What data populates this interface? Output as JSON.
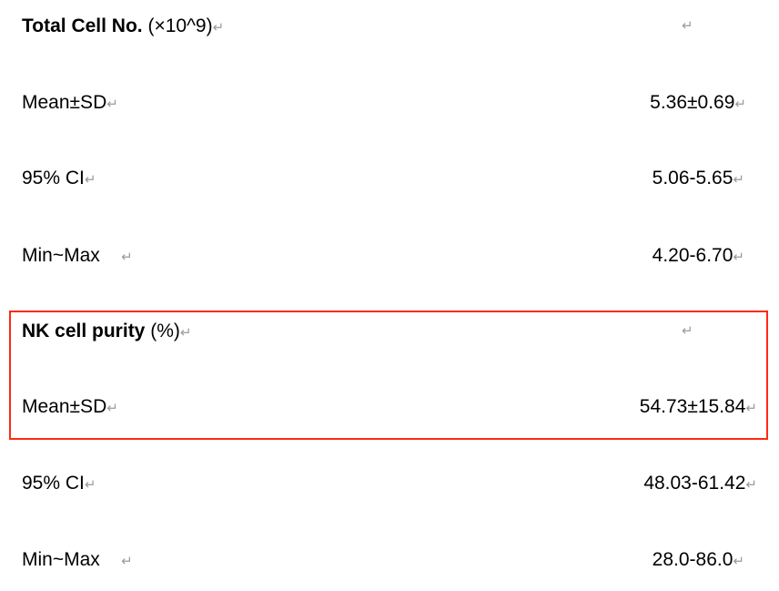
{
  "return_mark": "↵",
  "highlight_color": "#ff2a12",
  "sections": [
    {
      "title": "Total Cell No.",
      "unit": " (×10^9)",
      "rows": [
        {
          "label": "Mean±SD",
          "value": "5.36±0.69"
        },
        {
          "label": "95% CI",
          "value": "5.06-5.65"
        },
        {
          "label": "Min~Max",
          "value": "4.20-6.70"
        }
      ]
    },
    {
      "title": "NK cell purity",
      "unit": " (%)",
      "highlighted": true,
      "rows": [
        {
          "label": "Mean±SD",
          "value": "54.73±15.84"
        },
        {
          "label": "95% CI",
          "value": "48.03-61.42"
        },
        {
          "label": "Min~Max",
          "value": "28.0-86.0"
        }
      ]
    }
  ]
}
